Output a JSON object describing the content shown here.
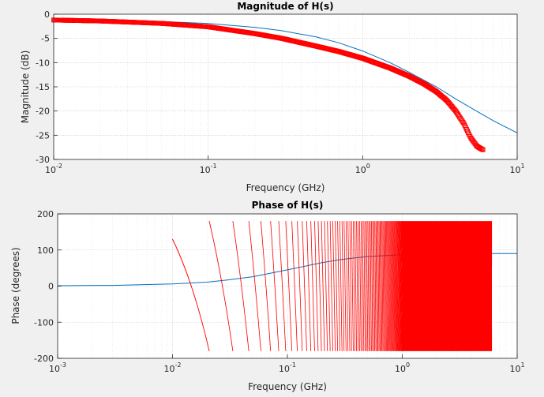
{
  "figure": {
    "background": "#f0f0f0"
  },
  "chart_data": [
    {
      "type": "line",
      "title": "Magnitude of H(s)",
      "xlabel": "Frequency (GHz)",
      "ylabel": "Magnitude (dB)",
      "xscale": "log",
      "xlim": [
        0.01,
        10
      ],
      "ylim": [
        -30,
        0
      ],
      "grid": true,
      "x_tick_labels": [
        {
          "base": "10",
          "exp": "-2"
        },
        {
          "base": "10",
          "exp": "-1"
        },
        {
          "base": "10",
          "exp": "0"
        },
        {
          "base": "10",
          "exp": "1"
        }
      ],
      "y_tick_labels": [
        "0",
        "-5",
        "-10",
        "-15",
        "-20",
        "-25",
        "-30"
      ],
      "series": [
        {
          "color": "#0072BD",
          "style": "line",
          "x": [
            0.01,
            0.02,
            0.05,
            0.1,
            0.2,
            0.3,
            0.5,
            0.7,
            1,
            1.5,
            2,
            3,
            4,
            5,
            7,
            10
          ],
          "y": [
            -1.1,
            -1.2,
            -1.5,
            -1.9,
            -2.7,
            -3.4,
            -4.7,
            -5.9,
            -7.6,
            -10.0,
            -12.0,
            -15.0,
            -17.5,
            -19.3,
            -22.0,
            -24.5
          ]
        },
        {
          "color": "#ff0000",
          "style": "markers",
          "x": [
            0.01,
            0.02,
            0.05,
            0.1,
            0.2,
            0.3,
            0.5,
            0.7,
            1,
            1.5,
            2,
            2.5,
            3,
            3.5,
            4,
            4.5,
            5,
            5.5,
            6
          ],
          "y": [
            -1.2,
            -1.4,
            -1.9,
            -2.6,
            -4.0,
            -5.0,
            -6.6,
            -7.7,
            -9.1,
            -11.1,
            -12.8,
            -14.4,
            -16.0,
            -17.8,
            -20.0,
            -22.5,
            -25.5,
            -27.3,
            -28.0
          ]
        }
      ]
    },
    {
      "type": "line",
      "title": "Phase of H(s)",
      "xlabel": "Frequency (GHz)",
      "ylabel": "Phase (degrees)",
      "xscale": "log",
      "xlim": [
        0.001,
        10
      ],
      "ylim": [
        -200,
        200
      ],
      "grid": true,
      "x_tick_labels": [
        {
          "base": "10",
          "exp": "-3"
        },
        {
          "base": "10",
          "exp": "-2"
        },
        {
          "base": "10",
          "exp": "-1"
        },
        {
          "base": "10",
          "exp": "0"
        },
        {
          "base": "10",
          "exp": "1"
        }
      ],
      "y_tick_labels": [
        "200",
        "100",
        "0",
        "-100",
        "-200"
      ],
      "series": [
        {
          "color": "#0072BD",
          "style": "line",
          "x": [
            0.001,
            0.003,
            0.01,
            0.02,
            0.03,
            0.05,
            0.1,
            0.2,
            0.3,
            0.5,
            1,
            2,
            3,
            5,
            10
          ],
          "y": [
            1,
            2,
            6,
            11,
            17,
            26,
            45,
            65,
            74,
            82,
            87,
            89,
            89.5,
            90,
            90
          ]
        },
        {
          "color": "#ff0000",
          "style": "wrapped-phase",
          "fmin": 0.01,
          "fmax": 6.0,
          "start_deg": 130,
          "slope_deg_per_ghz": -28500,
          "wrap_range": [
            -180,
            180
          ]
        }
      ]
    }
  ]
}
